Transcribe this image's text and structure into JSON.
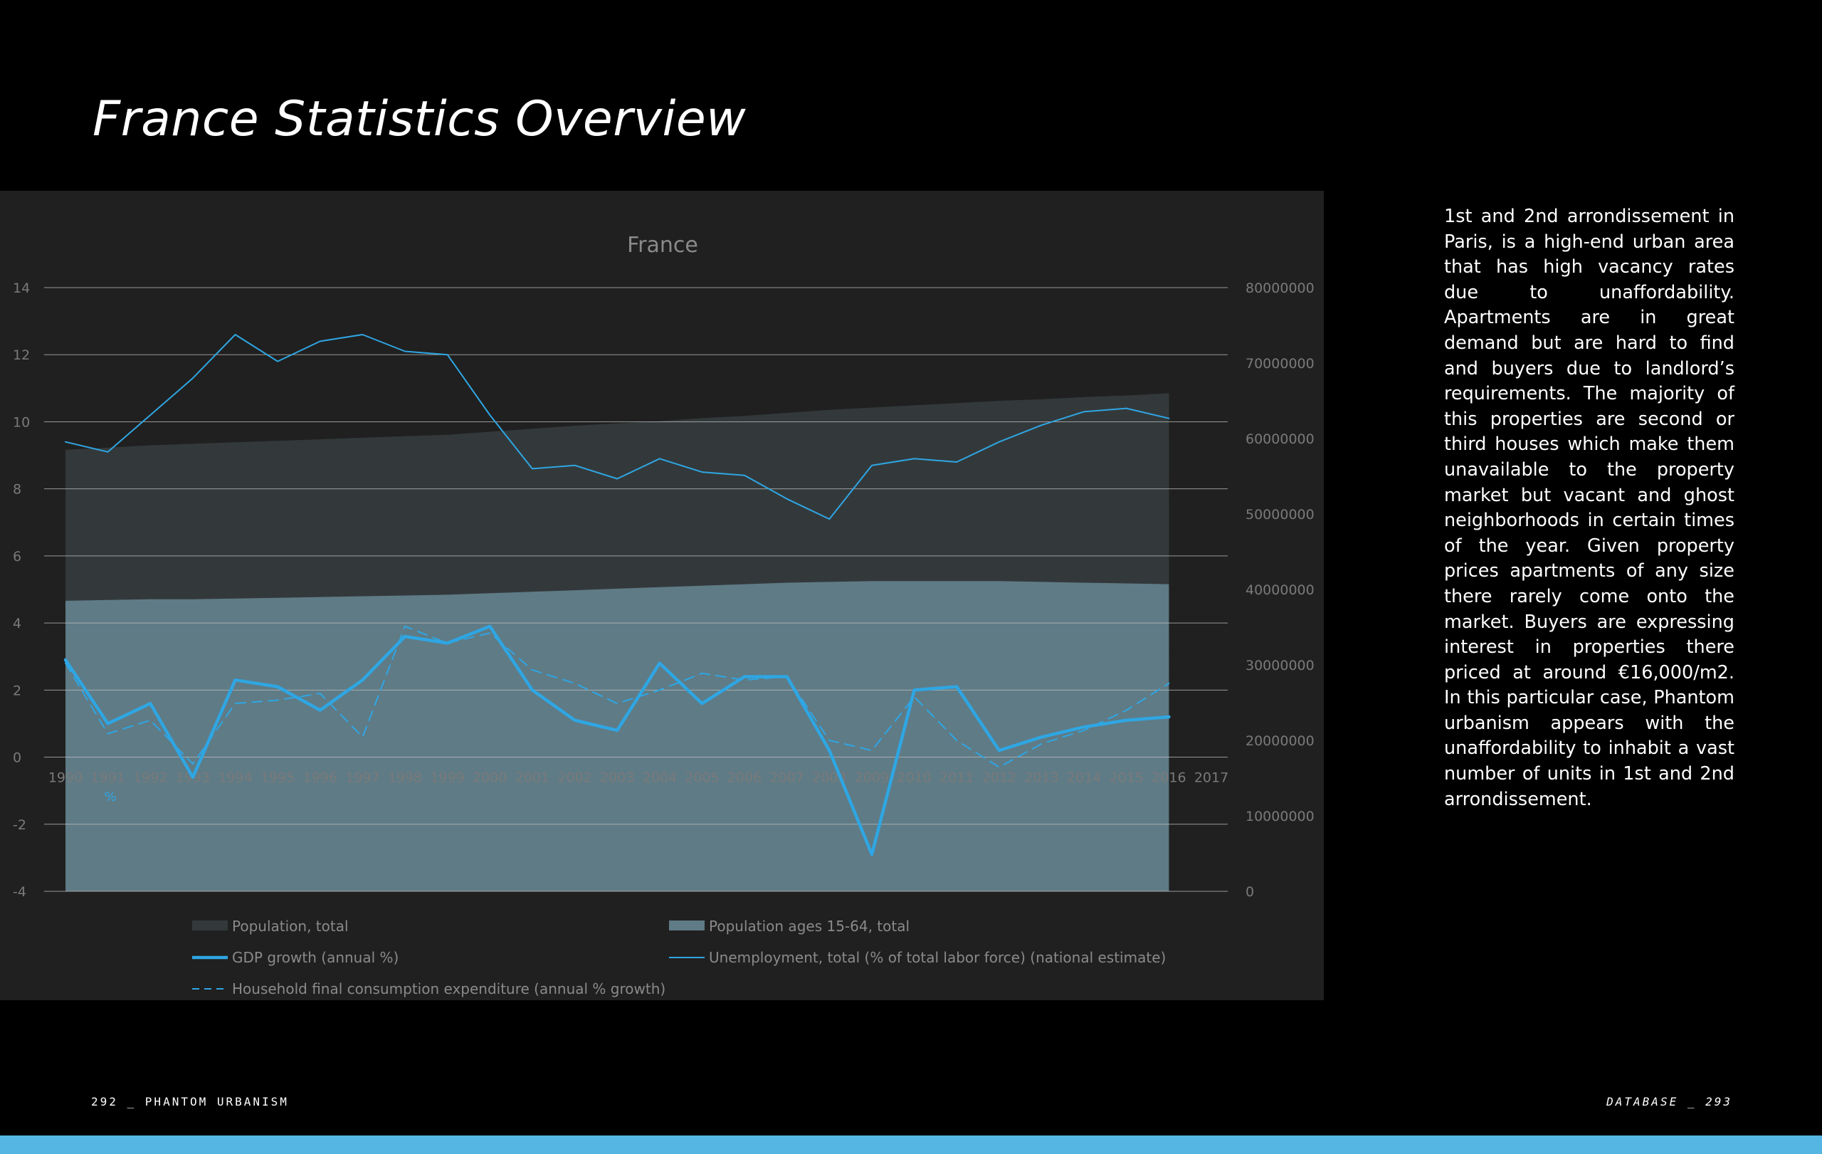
{
  "page": {
    "title": "France Statistics Overview",
    "body_text": "1st and 2nd arrondissement in Paris, is a high-end urban area that has high vacancy rates due to unaffordability. Apartments are in great demand but are hard to find and buyers due to landlord’s requirements. The majority of this properties are second or third houses which make them unavailable to the property market but vacant and ghost neighborhoods in certain times of the year. Given property prices apartments of any size there rarely come onto the market. Buyers are expressing interest in properties there priced at around €16,000/m2. In this particular case, Phantom urbanism appears with the unaffordability to inhabit a vast number of units in 1st and 2nd arrondissement.",
    "folio_left": "292 _ PHANTOM URBANISM",
    "folio_right": "DATABASE _ 293",
    "colors": {
      "background": "#000000",
      "chart_background": "#202020",
      "accent_band": "#55b6e4"
    }
  },
  "chart_data": {
    "type": "area",
    "title": "France",
    "x_axis_label_fragment": "%",
    "categories": [
      "1990",
      "1991",
      "1992",
      "1993",
      "1994",
      "1995",
      "1996",
      "1997",
      "1998",
      "1999",
      "2000",
      "2001",
      "2002",
      "2003",
      "2004",
      "2005",
      "2006",
      "2007",
      "2008",
      "2009",
      "2010",
      "2011",
      "2012",
      "2013",
      "2014",
      "2015",
      "2016",
      "2017"
    ],
    "left_axis": {
      "ylim": [
        -4,
        14
      ],
      "ticks": [
        14,
        12,
        10,
        8,
        6,
        4,
        2,
        0,
        -2,
        -4
      ]
    },
    "right_axis": {
      "ylim": [
        0,
        80000000
      ],
      "ticks": [
        80000000,
        70000000,
        60000000,
        50000000,
        40000000,
        30000000,
        20000000,
        10000000,
        0
      ]
    },
    "grid": true,
    "legend_placement": "bottom",
    "series": [
      {
        "name": "Population, total",
        "kind": "area",
        "axis": "right",
        "color": "#33393b",
        "values": [
          58500000,
          58800000,
          59100000,
          59300000,
          59500000,
          59700000,
          59900000,
          60100000,
          60300000,
          60500000,
          60900000,
          61300000,
          61700000,
          62000000,
          62300000,
          62700000,
          63000000,
          63400000,
          63800000,
          64100000,
          64400000,
          64700000,
          65000000,
          65200000,
          65500000,
          65700000,
          66000000,
          null
        ]
      },
      {
        "name": "Population ages 15-64, total",
        "kind": "area",
        "axis": "right",
        "color": "#5f7b86",
        "values": [
          38500000,
          38600000,
          38700000,
          38700000,
          38800000,
          38900000,
          39000000,
          39100000,
          39200000,
          39300000,
          39500000,
          39700000,
          39900000,
          40100000,
          40300000,
          40500000,
          40700000,
          40900000,
          41000000,
          41100000,
          41100000,
          41100000,
          41100000,
          41000000,
          40900000,
          40800000,
          40700000,
          null
        ]
      },
      {
        "name": "GDP growth (annual %)",
        "kind": "line",
        "axis": "left",
        "color": "#2fa6e3",
        "width": "thick",
        "values": [
          2.9,
          1.0,
          1.6,
          -0.6,
          2.3,
          2.1,
          1.4,
          2.3,
          3.6,
          3.4,
          3.9,
          2.0,
          1.1,
          0.8,
          2.8,
          1.6,
          2.4,
          2.4,
          0.2,
          -2.9,
          2.0,
          2.1,
          0.2,
          0.6,
          0.9,
          1.1,
          1.2,
          null
        ]
      },
      {
        "name": "Unemployment, total (% of total labor force) (national estimate)",
        "kind": "line",
        "axis": "left",
        "color": "#2fa6e3",
        "width": "thin",
        "values": [
          9.4,
          9.1,
          10.2,
          11.3,
          12.6,
          11.8,
          12.4,
          12.6,
          12.1,
          12.0,
          10.2,
          8.6,
          8.7,
          8.3,
          8.9,
          8.5,
          8.4,
          7.7,
          7.1,
          8.7,
          8.9,
          8.8,
          9.4,
          9.9,
          10.3,
          10.4,
          10.1,
          null
        ]
      },
      {
        "name": "Household final consumption expenditure (annual % growth)",
        "kind": "line",
        "axis": "left",
        "color": "#2fa6e3",
        "width": "dashed",
        "values": [
          2.8,
          0.7,
          1.1,
          -0.2,
          1.6,
          1.7,
          1.9,
          0.6,
          3.9,
          3.4,
          3.7,
          2.6,
          2.2,
          1.6,
          2.0,
          2.5,
          2.3,
          2.4,
          0.5,
          0.2,
          1.8,
          0.5,
          -0.3,
          0.4,
          0.8,
          1.4,
          2.2,
          null
        ]
      }
    ]
  }
}
